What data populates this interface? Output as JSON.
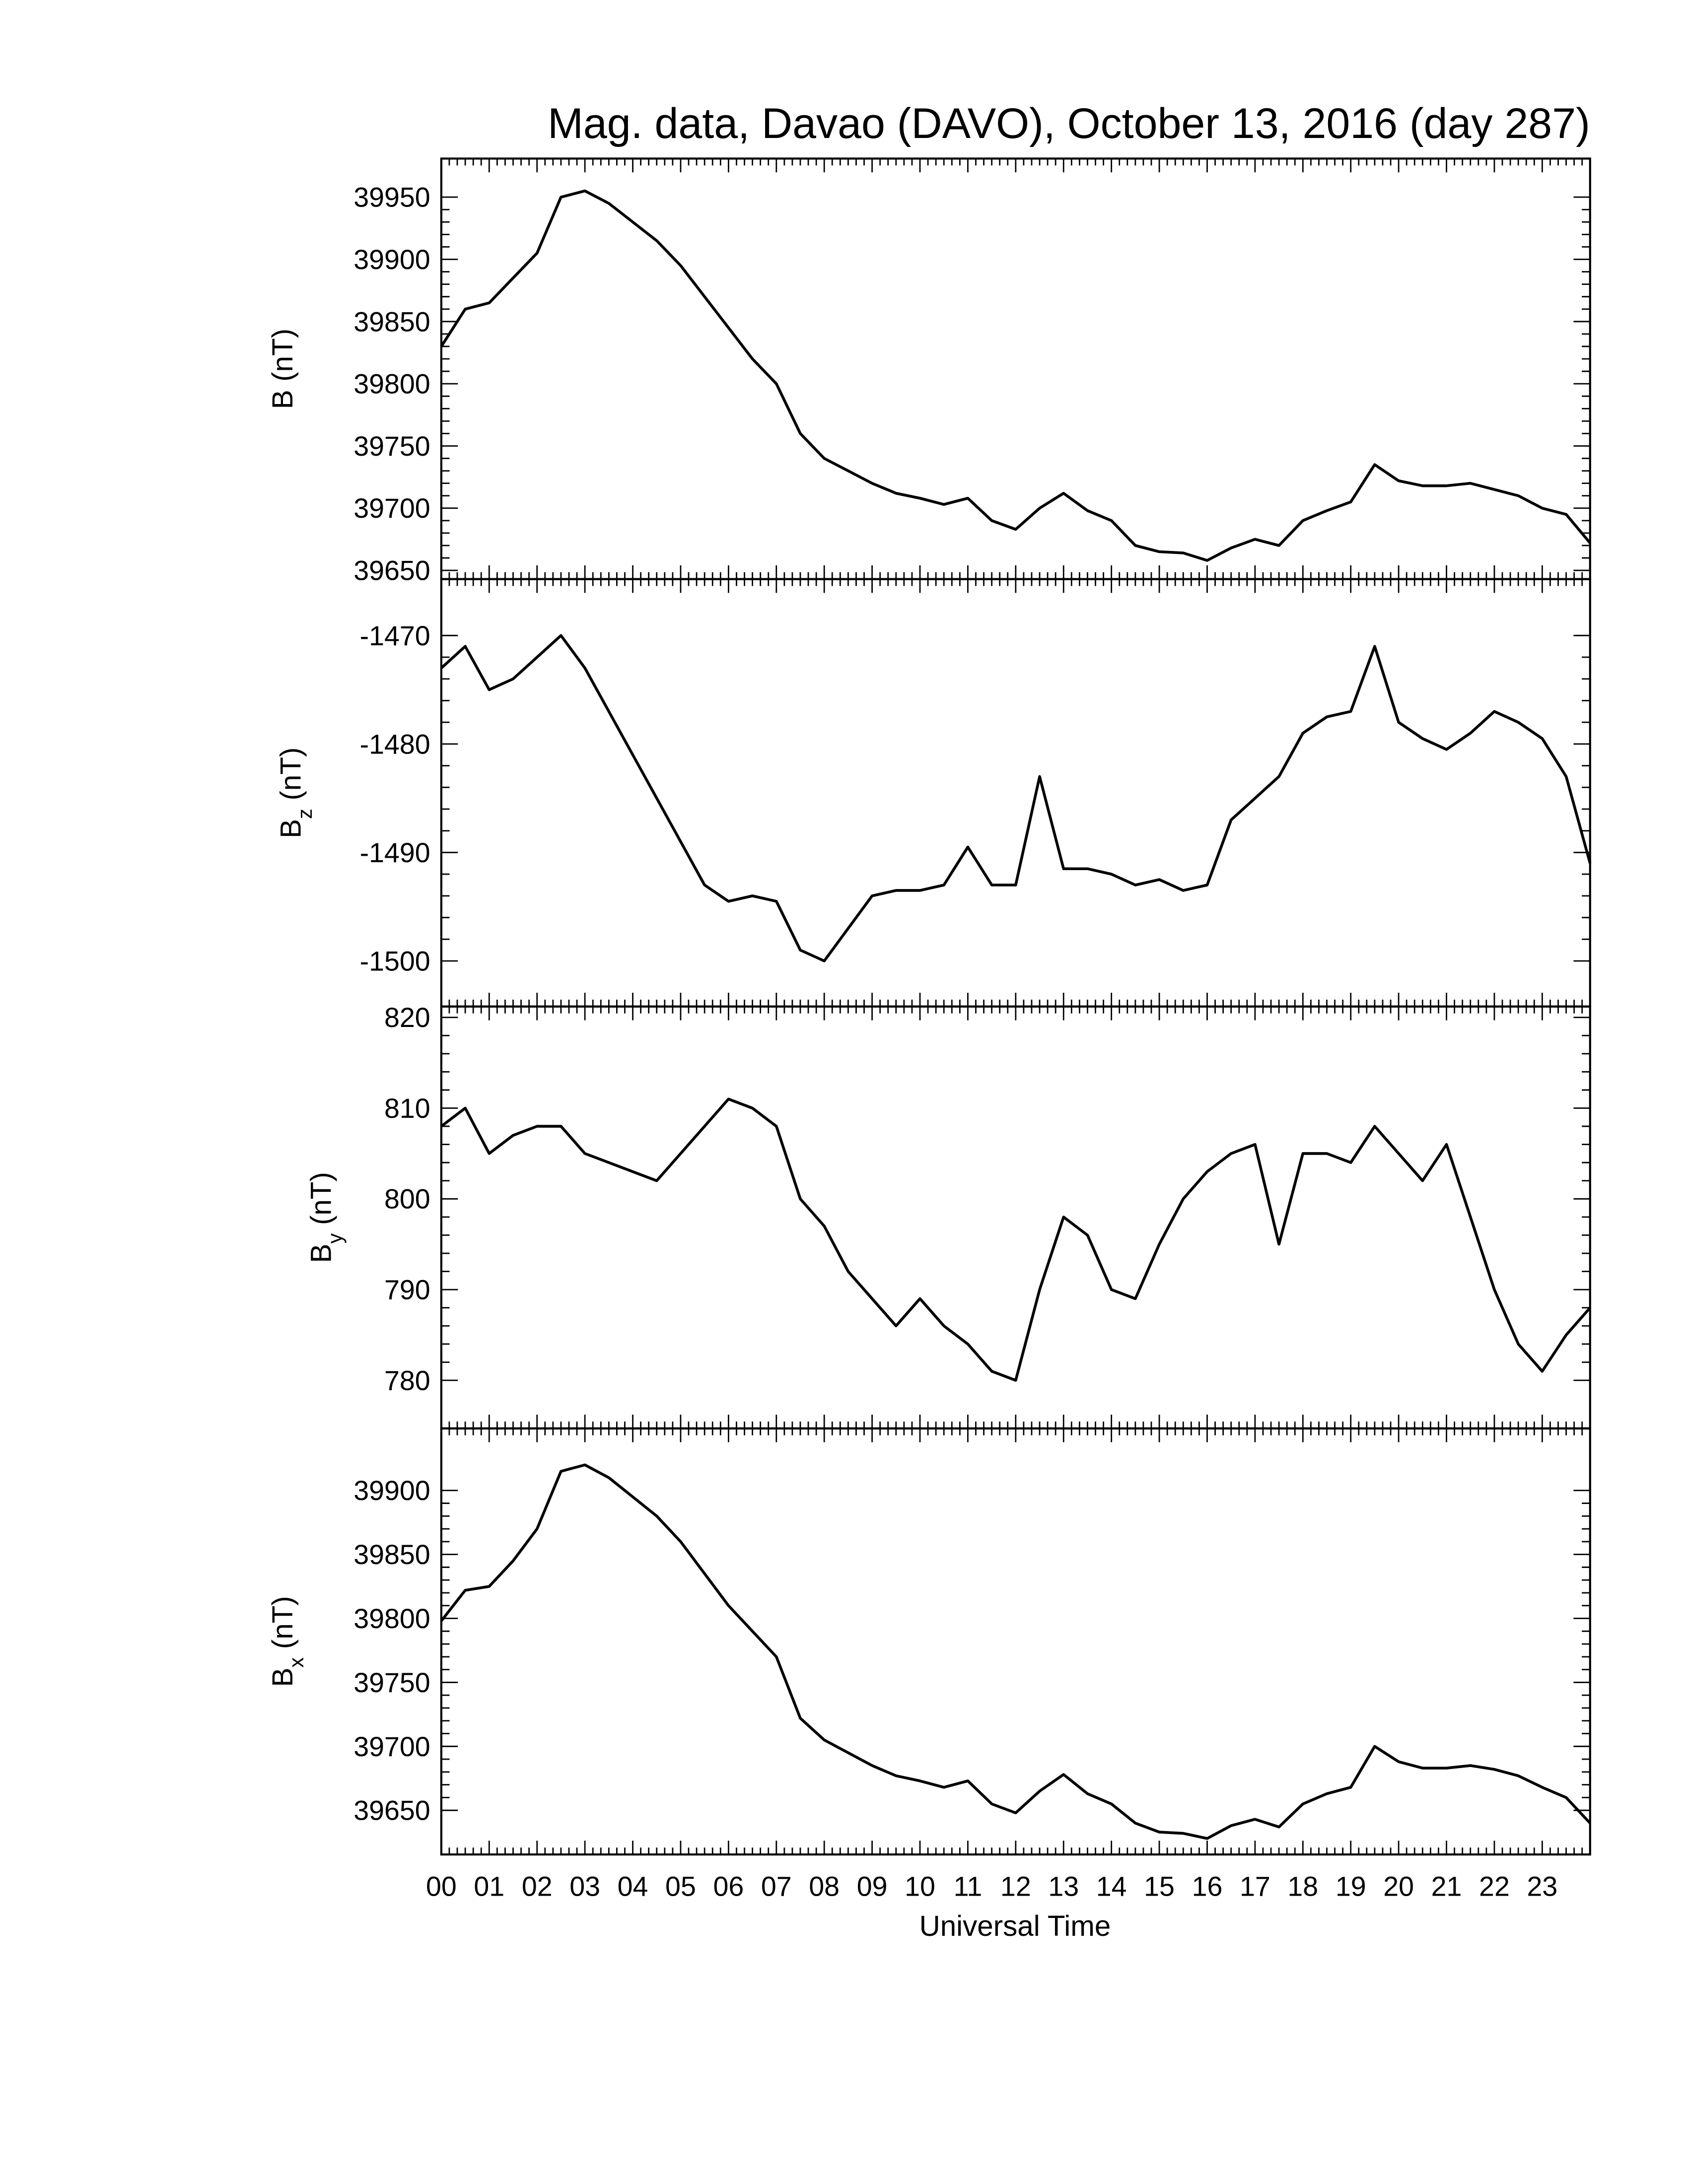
{
  "chart_data": [
    {
      "type": "line",
      "title": "Mag. data, Davao (DAVO), October 13, 2016 (day 287)",
      "ylabel": "B",
      "ylabel_unit": "(nT)",
      "color": "#000000",
      "x": [
        0,
        0.5,
        1,
        1.5,
        2,
        2.5,
        3,
        3.5,
        4,
        4.5,
        5,
        5.5,
        6,
        6.5,
        7,
        7.5,
        8,
        8.5,
        9,
        9.5,
        10,
        10.5,
        11,
        11.5,
        12,
        12.5,
        13,
        13.5,
        14,
        14.5,
        15,
        15.5,
        16,
        16.5,
        17,
        17.5,
        18,
        18.5,
        19,
        19.5,
        20,
        20.5,
        21,
        21.5,
        22,
        22.5,
        23,
        23.5,
        24
      ],
      "values": [
        39830,
        39860,
        39865,
        39885,
        39905,
        39950,
        39955,
        39945,
        39930,
        39915,
        39895,
        39870,
        39845,
        39820,
        39800,
        39760,
        39740,
        39730,
        39720,
        39712,
        39708,
        39703,
        39708,
        39690,
        39683,
        39700,
        39712,
        39698,
        39690,
        39670,
        39665,
        39664,
        39658,
        39668,
        39675,
        39670,
        39690,
        39698,
        39705,
        39735,
        39722,
        39718,
        39718,
        39720,
        39715,
        39710,
        39700,
        39695,
        39672
      ],
      "xlim": [
        0,
        24
      ],
      "ylim": [
        39643,
        39981
      ],
      "yticks": [
        39650,
        39700,
        39750,
        39800,
        39850,
        39900,
        39950
      ]
    },
    {
      "type": "line",
      "ylabel": "B",
      "ylabel_sub": "z",
      "ylabel_unit": "(nT)",
      "color": "#000000",
      "x": [
        0,
        0.5,
        1,
        1.5,
        2,
        2.5,
        3,
        3.5,
        4,
        4.5,
        5,
        5.5,
        6,
        6.5,
        7,
        7.5,
        8,
        8.5,
        9,
        9.5,
        10,
        10.5,
        11,
        11.5,
        12,
        12.5,
        13,
        13.5,
        14,
        14.5,
        15,
        15.5,
        16,
        16.5,
        17,
        17.5,
        18,
        18.5,
        19,
        19.5,
        20,
        20.5,
        21,
        21.5,
        22,
        22.5,
        23,
        23.5,
        24
      ],
      "values": [
        -1473,
        -1471,
        -1475,
        -1474,
        -1472,
        -1470,
        -1473,
        -1477,
        -1481,
        -1485,
        -1489,
        -1493,
        -1494.5,
        -1494,
        -1494.5,
        -1499,
        -1500,
        -1497,
        -1494,
        -1493.5,
        -1493.5,
        -1493,
        -1489.5,
        -1493,
        -1493,
        -1483,
        -1491.5,
        -1491.5,
        -1492,
        -1493,
        -1492.5,
        -1493.5,
        -1493,
        -1487,
        -1485,
        -1483,
        -1479,
        -1477.5,
        -1477,
        -1471,
        -1478,
        -1479.5,
        -1480.5,
        -1479,
        -1477,
        -1478,
        -1479.5,
        -1483,
        -1491
      ],
      "xlim": [
        0,
        24
      ],
      "ylim": [
        -1504.2,
        -1464.8
      ],
      "yticks": [
        -1500,
        -1490,
        -1480,
        -1470
      ]
    },
    {
      "type": "line",
      "ylabel": "B",
      "ylabel_sub": "y",
      "ylabel_unit": "(nT)",
      "color": "#000000",
      "x": [
        0,
        0.5,
        1,
        1.5,
        2,
        2.5,
        3,
        3.5,
        4,
        4.5,
        5,
        5.5,
        6,
        6.5,
        7,
        7.5,
        8,
        8.5,
        9,
        9.5,
        10,
        10.5,
        11,
        11.5,
        12,
        12.5,
        13,
        13.5,
        14,
        14.5,
        15,
        15.5,
        16,
        16.5,
        17,
        17.5,
        18,
        18.5,
        19,
        19.5,
        20,
        20.5,
        21,
        21.5,
        22,
        22.5,
        23,
        23.5,
        24
      ],
      "values": [
        808,
        810,
        805,
        807,
        808,
        808,
        805,
        804,
        803,
        802,
        805,
        808,
        811,
        810,
        808,
        800,
        797,
        792,
        789,
        786,
        789,
        786,
        784,
        781,
        780,
        790,
        798,
        796,
        790,
        789,
        795,
        800,
        803,
        805,
        806,
        795,
        805,
        805,
        804,
        808,
        805,
        802,
        806,
        798,
        790,
        784,
        781,
        785,
        788
      ],
      "xlim": [
        0,
        24
      ],
      "ylim": [
        774.7,
        821.2
      ],
      "yticks": [
        780,
        790,
        800,
        810,
        820
      ]
    },
    {
      "type": "line",
      "ylabel": "B",
      "ylabel_sub": "x",
      "ylabel_unit": "(nT)",
      "xlabel": "Universal Time",
      "color": "#000000",
      "x": [
        0,
        0.5,
        1,
        1.5,
        2,
        2.5,
        3,
        3.5,
        4,
        4.5,
        5,
        5.5,
        6,
        6.5,
        7,
        7.5,
        8,
        8.5,
        9,
        9.5,
        10,
        10.5,
        11,
        11.5,
        12,
        12.5,
        13,
        13.5,
        14,
        14.5,
        15,
        15.5,
        16,
        16.5,
        17,
        17.5,
        18,
        18.5,
        19,
        19.5,
        20,
        20.5,
        21,
        21.5,
        22,
        22.5,
        23,
        23.5,
        24
      ],
      "values": [
        39798,
        39822,
        39825,
        39845,
        39870,
        39915,
        39920,
        39910,
        39895,
        39880,
        39860,
        39835,
        39810,
        39790,
        39770,
        39722,
        39705,
        39695,
        39685,
        39677,
        39673,
        39668,
        39673,
        39655,
        39648,
        39665,
        39678,
        39663,
        39655,
        39640,
        39633,
        39632,
        39628,
        39638,
        39643,
        39637,
        39655,
        39663,
        39668,
        39700,
        39688,
        39683,
        39683,
        39685,
        39682,
        39677,
        39668,
        39660,
        39640
      ],
      "xlim": [
        0,
        24
      ],
      "ylim": [
        39615.5,
        39948.5
      ],
      "yticks": [
        39650,
        39700,
        39750,
        39800,
        39850,
        39900
      ],
      "xticks": [
        {
          "value": 0,
          "label": "00"
        },
        {
          "value": 1,
          "label": "01"
        },
        {
          "value": 2,
          "label": "02"
        },
        {
          "value": 3,
          "label": "03"
        },
        {
          "value": 4,
          "label": "04"
        },
        {
          "value": 5,
          "label": "05"
        },
        {
          "value": 6,
          "label": "06"
        },
        {
          "value": 7,
          "label": "07"
        },
        {
          "value": 8,
          "label": "08"
        },
        {
          "value": 9,
          "label": "09"
        },
        {
          "value": 10,
          "label": "10"
        },
        {
          "value": 11,
          "label": "11"
        },
        {
          "value": 12,
          "label": "12"
        },
        {
          "value": 13,
          "label": "13"
        },
        {
          "value": 14,
          "label": "14"
        },
        {
          "value": 15,
          "label": "15"
        },
        {
          "value": 16,
          "label": "16"
        },
        {
          "value": 17,
          "label": "17"
        },
        {
          "value": 18,
          "label": "18"
        },
        {
          "value": 19,
          "label": "19"
        },
        {
          "value": 20,
          "label": "20"
        },
        {
          "value": 21,
          "label": "21"
        },
        {
          "value": 22,
          "label": "22"
        },
        {
          "value": 23,
          "label": "23"
        }
      ]
    }
  ]
}
